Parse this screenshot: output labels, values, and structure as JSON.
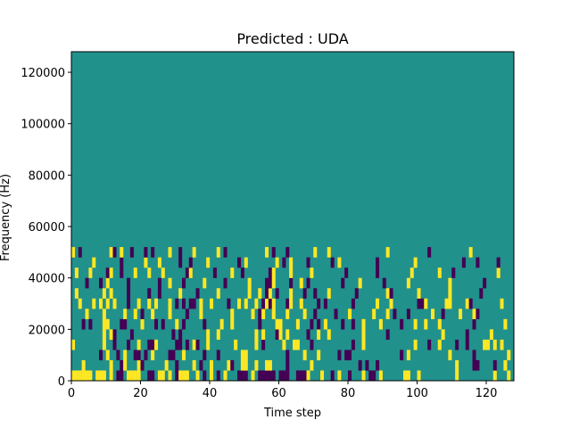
{
  "chart_data": {
    "type": "heatmap",
    "title": "Predicted : UDA",
    "xlabel": "Time step",
    "ylabel": "Frequency (Hz)",
    "xlim": [
      0,
      128
    ],
    "ylim": [
      0,
      128000
    ],
    "xticks": [
      0,
      20,
      40,
      60,
      80,
      100,
      120
    ],
    "yticks": [
      0,
      20000,
      40000,
      60000,
      80000,
      100000,
      120000
    ],
    "bin_width_hz": 4000,
    "values_legend": {
      "-1": "dark",
      "0": "background",
      "1": "bright"
    },
    "colors": {
      "background": "#21918c",
      "dark": "#440154",
      "bright": "#fde725"
    },
    "cells": [
      [
        0,
        0,
        1
      ],
      [
        1,
        0,
        1
      ],
      [
        2,
        0,
        1
      ],
      [
        3,
        0,
        1
      ],
      [
        4,
        0,
        1
      ],
      [
        5,
        0,
        1
      ],
      [
        7,
        0,
        1
      ],
      [
        8,
        0,
        1
      ],
      [
        9,
        0,
        1
      ],
      [
        11,
        0,
        1
      ],
      [
        13,
        0,
        -1
      ],
      [
        14,
        0,
        -1
      ],
      [
        16,
        0,
        1
      ],
      [
        17,
        0,
        1
      ],
      [
        18,
        0,
        1
      ],
      [
        19,
        0,
        1
      ],
      [
        22,
        0,
        -1
      ],
      [
        23,
        0,
        -1
      ],
      [
        25,
        0,
        1
      ],
      [
        26,
        0,
        1
      ],
      [
        28,
        0,
        1
      ],
      [
        30,
        0,
        -1
      ],
      [
        31,
        0,
        1
      ],
      [
        32,
        0,
        1
      ],
      [
        33,
        0,
        1
      ],
      [
        36,
        0,
        1
      ],
      [
        38,
        0,
        -1
      ],
      [
        40,
        0,
        1
      ],
      [
        42,
        0,
        -1
      ],
      [
        44,
        0,
        1
      ],
      [
        48,
        0,
        -1
      ],
      [
        49,
        0,
        -1
      ],
      [
        50,
        0,
        -1
      ],
      [
        52,
        0,
        1
      ],
      [
        54,
        0,
        -1
      ],
      [
        55,
        0,
        -1
      ],
      [
        56,
        0,
        -1
      ],
      [
        57,
        0,
        -1
      ],
      [
        58,
        0,
        -1
      ],
      [
        60,
        0,
        -1
      ],
      [
        61,
        0,
        -1
      ],
      [
        62,
        0,
        -1
      ],
      [
        65,
        0,
        -1
      ],
      [
        66,
        0,
        -1
      ],
      [
        67,
        0,
        -1
      ],
      [
        68,
        0,
        1
      ],
      [
        72,
        0,
        1
      ],
      [
        75,
        0,
        -1
      ],
      [
        77,
        0,
        1
      ],
      [
        80,
        0,
        -1
      ],
      [
        84,
        0,
        1
      ],
      [
        86,
        0,
        -1
      ],
      [
        87,
        0,
        -1
      ],
      [
        89,
        0,
        1
      ],
      [
        96,
        0,
        1
      ],
      [
        97,
        0,
        1
      ],
      [
        100,
        0,
        1
      ],
      [
        111,
        0,
        1
      ],
      [
        122,
        0,
        1
      ],
      [
        126,
        0,
        1
      ],
      [
        3,
        1,
        1
      ],
      [
        11,
        1,
        1
      ],
      [
        14,
        1,
        -1
      ],
      [
        15,
        1,
        1
      ],
      [
        19,
        1,
        1
      ],
      [
        20,
        1,
        -1
      ],
      [
        27,
        1,
        1
      ],
      [
        30,
        1,
        -1
      ],
      [
        35,
        1,
        1
      ],
      [
        37,
        1,
        -1
      ],
      [
        40,
        1,
        1
      ],
      [
        45,
        1,
        1
      ],
      [
        46,
        1,
        -1
      ],
      [
        49,
        1,
        1
      ],
      [
        50,
        1,
        1
      ],
      [
        53,
        1,
        1
      ],
      [
        56,
        1,
        1
      ],
      [
        57,
        1,
        1
      ],
      [
        62,
        1,
        -1
      ],
      [
        69,
        1,
        1
      ],
      [
        83,
        1,
        -1
      ],
      [
        85,
        1,
        -1
      ],
      [
        88,
        1,
        -1
      ],
      [
        111,
        1,
        1
      ],
      [
        116,
        1,
        -1
      ],
      [
        117,
        1,
        -1
      ],
      [
        122,
        1,
        -1
      ],
      [
        125,
        1,
        1
      ],
      [
        8,
        2,
        -1
      ],
      [
        10,
        2,
        1
      ],
      [
        13,
        2,
        -1
      ],
      [
        15,
        2,
        1
      ],
      [
        18,
        2,
        -1
      ],
      [
        19,
        2,
        -1
      ],
      [
        21,
        2,
        -1
      ],
      [
        23,
        2,
        1
      ],
      [
        28,
        2,
        -1
      ],
      [
        29,
        2,
        -1
      ],
      [
        32,
        2,
        1
      ],
      [
        38,
        2,
        -1
      ],
      [
        42,
        2,
        -1
      ],
      [
        49,
        2,
        1
      ],
      [
        50,
        2,
        1
      ],
      [
        62,
        2,
        -1
      ],
      [
        67,
        2,
        1
      ],
      [
        71,
        2,
        1
      ],
      [
        77,
        2,
        -1
      ],
      [
        79,
        2,
        -1
      ],
      [
        80,
        2,
        -1
      ],
      [
        95,
        2,
        -1
      ],
      [
        97,
        2,
        1
      ],
      [
        109,
        2,
        1
      ],
      [
        116,
        2,
        -1
      ],
      [
        126,
        2,
        1
      ],
      [
        0,
        3,
        1
      ],
      [
        9,
        3,
        1
      ],
      [
        12,
        3,
        -1
      ],
      [
        16,
        3,
        -1
      ],
      [
        19,
        3,
        1
      ],
      [
        22,
        3,
        -1
      ],
      [
        23,
        3,
        -1
      ],
      [
        24,
        3,
        1
      ],
      [
        30,
        3,
        -1
      ],
      [
        31,
        3,
        -1
      ],
      [
        33,
        3,
        -1
      ],
      [
        35,
        3,
        1
      ],
      [
        36,
        3,
        -1
      ],
      [
        39,
        3,
        1
      ],
      [
        47,
        3,
        1
      ],
      [
        53,
        3,
        1
      ],
      [
        55,
        3,
        -1
      ],
      [
        61,
        3,
        1
      ],
      [
        64,
        3,
        1
      ],
      [
        65,
        3,
        1
      ],
      [
        69,
        3,
        -1
      ],
      [
        81,
        3,
        -1
      ],
      [
        84,
        3,
        1
      ],
      [
        99,
        3,
        1
      ],
      [
        103,
        3,
        -1
      ],
      [
        106,
        3,
        1
      ],
      [
        111,
        3,
        -1
      ],
      [
        114,
        3,
        -1
      ],
      [
        119,
        3,
        1
      ],
      [
        120,
        3,
        1
      ],
      [
        122,
        3,
        1
      ],
      [
        124,
        3,
        1
      ],
      [
        9,
        4,
        1
      ],
      [
        11,
        4,
        1
      ],
      [
        12,
        4,
        -1
      ],
      [
        17,
        4,
        -1
      ],
      [
        29,
        4,
        -1
      ],
      [
        31,
        4,
        -1
      ],
      [
        39,
        4,
        1
      ],
      [
        42,
        4,
        1
      ],
      [
        53,
        4,
        1
      ],
      [
        55,
        4,
        1
      ],
      [
        59,
        4,
        -1
      ],
      [
        60,
        4,
        1
      ],
      [
        62,
        4,
        1
      ],
      [
        68,
        4,
        -1
      ],
      [
        71,
        4,
        1
      ],
      [
        74,
        4,
        1
      ],
      [
        84,
        4,
        1
      ],
      [
        91,
        4,
        -1
      ],
      [
        107,
        4,
        1
      ],
      [
        114,
        4,
        -1
      ],
      [
        121,
        4,
        1
      ],
      [
        3,
        5,
        -1
      ],
      [
        5,
        5,
        -1
      ],
      [
        9,
        5,
        1
      ],
      [
        10,
        5,
        1
      ],
      [
        14,
        5,
        -1
      ],
      [
        15,
        5,
        -1
      ],
      [
        20,
        5,
        1
      ],
      [
        24,
        5,
        -1
      ],
      [
        26,
        5,
        -1
      ],
      [
        30,
        5,
        1
      ],
      [
        32,
        5,
        -1
      ],
      [
        38,
        5,
        -1
      ],
      [
        43,
        5,
        1
      ],
      [
        46,
        5,
        1
      ],
      [
        54,
        5,
        -1
      ],
      [
        59,
        5,
        1
      ],
      [
        60,
        5,
        1
      ],
      [
        65,
        5,
        1
      ],
      [
        69,
        5,
        -1
      ],
      [
        71,
        5,
        -1
      ],
      [
        73,
        5,
        1
      ],
      [
        78,
        5,
        -1
      ],
      [
        81,
        5,
        -1
      ],
      [
        84,
        5,
        1
      ],
      [
        89,
        5,
        1
      ],
      [
        95,
        5,
        -1
      ],
      [
        99,
        5,
        1
      ],
      [
        102,
        5,
        1
      ],
      [
        106,
        5,
        1
      ],
      [
        116,
        5,
        -1
      ],
      [
        125,
        5,
        1
      ],
      [
        4,
        6,
        1
      ],
      [
        9,
        6,
        1
      ],
      [
        15,
        6,
        1
      ],
      [
        18,
        6,
        1
      ],
      [
        20,
        6,
        -1
      ],
      [
        23,
        6,
        1
      ],
      [
        28,
        6,
        1
      ],
      [
        33,
        6,
        -1
      ],
      [
        37,
        6,
        1
      ],
      [
        46,
        6,
        1
      ],
      [
        52,
        6,
        1
      ],
      [
        54,
        6,
        -1
      ],
      [
        55,
        6,
        1
      ],
      [
        58,
        6,
        1
      ],
      [
        62,
        6,
        1
      ],
      [
        67,
        6,
        1
      ],
      [
        70,
        6,
        -1
      ],
      [
        76,
        6,
        -1
      ],
      [
        80,
        6,
        1
      ],
      [
        87,
        6,
        1
      ],
      [
        91,
        6,
        1
      ],
      [
        93,
        6,
        -1
      ],
      [
        97,
        6,
        -1
      ],
      [
        104,
        6,
        1
      ],
      [
        107,
        6,
        -1
      ],
      [
        112,
        6,
        1
      ],
      [
        116,
        6,
        1
      ],
      [
        117,
        6,
        -1
      ],
      [
        2,
        7,
        1
      ],
      [
        6,
        7,
        1
      ],
      [
        8,
        7,
        1
      ],
      [
        10,
        7,
        1
      ],
      [
        12,
        7,
        1
      ],
      [
        16,
        7,
        -1
      ],
      [
        19,
        7,
        1
      ],
      [
        22,
        7,
        1
      ],
      [
        24,
        7,
        1
      ],
      [
        28,
        7,
        1
      ],
      [
        30,
        7,
        -1
      ],
      [
        32,
        7,
        -1
      ],
      [
        34,
        7,
        -1
      ],
      [
        35,
        7,
        -1
      ],
      [
        37,
        7,
        1
      ],
      [
        40,
        7,
        1
      ],
      [
        45,
        7,
        -1
      ],
      [
        48,
        7,
        1
      ],
      [
        50,
        7,
        1
      ],
      [
        53,
        7,
        1
      ],
      [
        55,
        7,
        -1
      ],
      [
        56,
        7,
        1
      ],
      [
        57,
        7,
        -1
      ],
      [
        58,
        7,
        1
      ],
      [
        62,
        7,
        -1
      ],
      [
        63,
        7,
        1
      ],
      [
        66,
        7,
        1
      ],
      [
        71,
        7,
        -1
      ],
      [
        73,
        7,
        -1
      ],
      [
        81,
        7,
        -1
      ],
      [
        88,
        7,
        1
      ],
      [
        92,
        7,
        1
      ],
      [
        100,
        7,
        -1
      ],
      [
        101,
        7,
        -1
      ],
      [
        102,
        7,
        1
      ],
      [
        108,
        7,
        1
      ],
      [
        109,
        7,
        1
      ],
      [
        114,
        7,
        1
      ],
      [
        115,
        7,
        -1
      ],
      [
        124,
        7,
        1
      ],
      [
        1,
        8,
        1
      ],
      [
        9,
        8,
        1
      ],
      [
        11,
        8,
        1
      ],
      [
        16,
        8,
        -1
      ],
      [
        22,
        8,
        -1
      ],
      [
        25,
        8,
        -1
      ],
      [
        31,
        8,
        1
      ],
      [
        36,
        8,
        -1
      ],
      [
        42,
        8,
        1
      ],
      [
        51,
        8,
        1
      ],
      [
        54,
        8,
        1
      ],
      [
        56,
        8,
        -1
      ],
      [
        57,
        8,
        1
      ],
      [
        59,
        8,
        -1
      ],
      [
        63,
        8,
        1
      ],
      [
        67,
        8,
        -1
      ],
      [
        70,
        8,
        -1
      ],
      [
        74,
        8,
        1
      ],
      [
        82,
        8,
        -1
      ],
      [
        91,
        8,
        1
      ],
      [
        92,
        8,
        -1
      ],
      [
        100,
        8,
        1
      ],
      [
        109,
        8,
        1
      ],
      [
        118,
        8,
        -1
      ],
      [
        4,
        9,
        -1
      ],
      [
        8,
        9,
        -1
      ],
      [
        10,
        9,
        1
      ],
      [
        16,
        9,
        -1
      ],
      [
        25,
        9,
        -1
      ],
      [
        28,
        9,
        1
      ],
      [
        32,
        9,
        -1
      ],
      [
        38,
        9,
        1
      ],
      [
        44,
        9,
        -1
      ],
      [
        51,
        9,
        1
      ],
      [
        56,
        9,
        -1
      ],
      [
        57,
        9,
        -1
      ],
      [
        58,
        9,
        1
      ],
      [
        63,
        9,
        -1
      ],
      [
        66,
        9,
        1
      ],
      [
        68,
        9,
        -1
      ],
      [
        78,
        9,
        -1
      ],
      [
        83,
        9,
        1
      ],
      [
        90,
        9,
        -1
      ],
      [
        97,
        9,
        1
      ],
      [
        109,
        9,
        1
      ],
      [
        119,
        9,
        -1
      ],
      [
        1,
        10,
        1
      ],
      [
        5,
        10,
        1
      ],
      [
        10,
        10,
        -1
      ],
      [
        11,
        10,
        1
      ],
      [
        14,
        10,
        -1
      ],
      [
        18,
        10,
        1
      ],
      [
        22,
        10,
        1
      ],
      [
        26,
        10,
        1
      ],
      [
        33,
        10,
        -1
      ],
      [
        34,
        10,
        1
      ],
      [
        41,
        10,
        -1
      ],
      [
        46,
        10,
        1
      ],
      [
        49,
        10,
        -1
      ],
      [
        57,
        10,
        -1
      ],
      [
        58,
        10,
        1
      ],
      [
        63,
        10,
        1
      ],
      [
        69,
        10,
        1
      ],
      [
        79,
        10,
        -1
      ],
      [
        88,
        10,
        -1
      ],
      [
        98,
        10,
        1
      ],
      [
        106,
        10,
        1
      ],
      [
        110,
        10,
        -1
      ],
      [
        123,
        10,
        1
      ],
      [
        6,
        11,
        1
      ],
      [
        14,
        11,
        -1
      ],
      [
        21,
        11,
        1
      ],
      [
        25,
        11,
        1
      ],
      [
        31,
        11,
        -1
      ],
      [
        34,
        11,
        -1
      ],
      [
        39,
        11,
        1
      ],
      [
        48,
        11,
        -1
      ],
      [
        50,
        11,
        1
      ],
      [
        59,
        11,
        1
      ],
      [
        61,
        11,
        -1
      ],
      [
        63,
        11,
        1
      ],
      [
        68,
        11,
        -1
      ],
      [
        75,
        11,
        -1
      ],
      [
        77,
        11,
        1
      ],
      [
        88,
        11,
        -1
      ],
      [
        99,
        11,
        1
      ],
      [
        113,
        11,
        -1
      ],
      [
        117,
        11,
        -1
      ],
      [
        123,
        11,
        -1
      ],
      [
        0,
        12,
        1
      ],
      [
        2,
        12,
        -1
      ],
      [
        11,
        12,
        1
      ],
      [
        12,
        12,
        -1
      ],
      [
        14,
        12,
        1
      ],
      [
        17,
        12,
        -1
      ],
      [
        21,
        12,
        -1
      ],
      [
        23,
        12,
        -1
      ],
      [
        28,
        12,
        1
      ],
      [
        31,
        12,
        -1
      ],
      [
        35,
        12,
        1
      ],
      [
        42,
        12,
        1
      ],
      [
        44,
        12,
        -1
      ],
      [
        56,
        12,
        1
      ],
      [
        58,
        12,
        -1
      ],
      [
        62,
        12,
        -1
      ],
      [
        70,
        12,
        1
      ],
      [
        74,
        12,
        1
      ],
      [
        91,
        12,
        1
      ],
      [
        103,
        12,
        -1
      ],
      [
        115,
        12,
        1
      ]
    ]
  }
}
